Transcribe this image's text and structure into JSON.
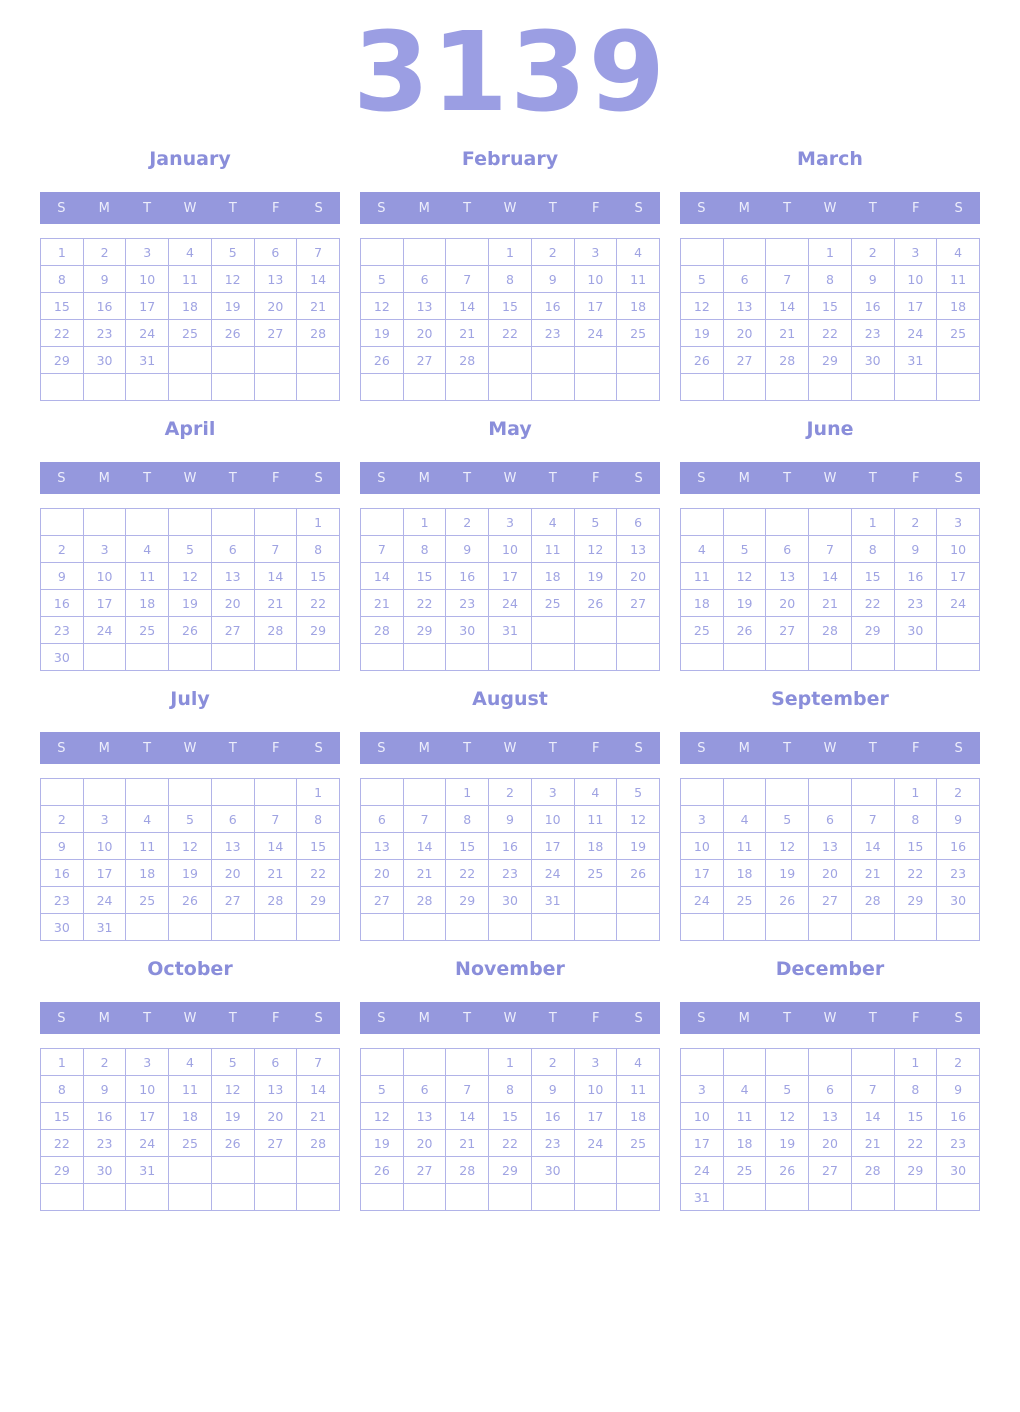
{
  "year": "3139",
  "weekdays": [
    "S",
    "M",
    "T",
    "W",
    "T",
    "F",
    "S"
  ],
  "colors": {
    "year_color": "#9b9ee3",
    "title_color": "#8a8eda",
    "weekday_bg": "#9598dd",
    "weekday_text": "#edeefb",
    "date_text": "#9fa3e2",
    "cell_border": "#b1b3e8",
    "page_bg": "#ffffff"
  },
  "months": [
    {
      "name": "January",
      "weeks": [
        [
          "1",
          "2",
          "3",
          "4",
          "5",
          "6",
          "7"
        ],
        [
          "8",
          "9",
          "10",
          "11",
          "12",
          "13",
          "14"
        ],
        [
          "15",
          "16",
          "17",
          "18",
          "19",
          "20",
          "21"
        ],
        [
          "22",
          "23",
          "24",
          "25",
          "26",
          "27",
          "28"
        ],
        [
          "29",
          "30",
          "31",
          "",
          "",
          "",
          ""
        ],
        [
          "",
          "",
          "",
          "",
          "",
          "",
          ""
        ]
      ]
    },
    {
      "name": "February",
      "weeks": [
        [
          "",
          "",
          "",
          "1",
          "2",
          "3",
          "4"
        ],
        [
          "5",
          "6",
          "7",
          "8",
          "9",
          "10",
          "11"
        ],
        [
          "12",
          "13",
          "14",
          "15",
          "16",
          "17",
          "18"
        ],
        [
          "19",
          "20",
          "21",
          "22",
          "23",
          "24",
          "25"
        ],
        [
          "26",
          "27",
          "28",
          "",
          "",
          "",
          ""
        ],
        [
          "",
          "",
          "",
          "",
          "",
          "",
          ""
        ]
      ]
    },
    {
      "name": "March",
      "weeks": [
        [
          "",
          "",
          "",
          "1",
          "2",
          "3",
          "4"
        ],
        [
          "5",
          "6",
          "7",
          "8",
          "9",
          "10",
          "11"
        ],
        [
          "12",
          "13",
          "14",
          "15",
          "16",
          "17",
          "18"
        ],
        [
          "19",
          "20",
          "21",
          "22",
          "23",
          "24",
          "25"
        ],
        [
          "26",
          "27",
          "28",
          "29",
          "30",
          "31",
          ""
        ],
        [
          "",
          "",
          "",
          "",
          "",
          "",
          ""
        ]
      ]
    },
    {
      "name": "April",
      "weeks": [
        [
          "",
          "",
          "",
          "",
          "",
          "",
          "1"
        ],
        [
          "2",
          "3",
          "4",
          "5",
          "6",
          "7",
          "8"
        ],
        [
          "9",
          "10",
          "11",
          "12",
          "13",
          "14",
          "15"
        ],
        [
          "16",
          "17",
          "18",
          "19",
          "20",
          "21",
          "22"
        ],
        [
          "23",
          "24",
          "25",
          "26",
          "27",
          "28",
          "29"
        ],
        [
          "30",
          "",
          "",
          "",
          "",
          "",
          ""
        ]
      ]
    },
    {
      "name": "May",
      "weeks": [
        [
          "",
          "1",
          "2",
          "3",
          "4",
          "5",
          "6"
        ],
        [
          "7",
          "8",
          "9",
          "10",
          "11",
          "12",
          "13"
        ],
        [
          "14",
          "15",
          "16",
          "17",
          "18",
          "19",
          "20"
        ],
        [
          "21",
          "22",
          "23",
          "24",
          "25",
          "26",
          "27"
        ],
        [
          "28",
          "29",
          "30",
          "31",
          "",
          "",
          ""
        ],
        [
          "",
          "",
          "",
          "",
          "",
          "",
          ""
        ]
      ]
    },
    {
      "name": "June",
      "weeks": [
        [
          "",
          "",
          "",
          "",
          "1",
          "2",
          "3"
        ],
        [
          "4",
          "5",
          "6",
          "7",
          "8",
          "9",
          "10"
        ],
        [
          "11",
          "12",
          "13",
          "14",
          "15",
          "16",
          "17"
        ],
        [
          "18",
          "19",
          "20",
          "21",
          "22",
          "23",
          "24"
        ],
        [
          "25",
          "26",
          "27",
          "28",
          "29",
          "30",
          ""
        ],
        [
          "",
          "",
          "",
          "",
          "",
          "",
          ""
        ]
      ]
    },
    {
      "name": "July",
      "weeks": [
        [
          "",
          "",
          "",
          "",
          "",
          "",
          "1"
        ],
        [
          "2",
          "3",
          "4",
          "5",
          "6",
          "7",
          "8"
        ],
        [
          "9",
          "10",
          "11",
          "12",
          "13",
          "14",
          "15"
        ],
        [
          "16",
          "17",
          "18",
          "19",
          "20",
          "21",
          "22"
        ],
        [
          "23",
          "24",
          "25",
          "26",
          "27",
          "28",
          "29"
        ],
        [
          "30",
          "31",
          "",
          "",
          "",
          "",
          ""
        ]
      ]
    },
    {
      "name": "August",
      "weeks": [
        [
          "",
          "",
          "1",
          "2",
          "3",
          "4",
          "5"
        ],
        [
          "6",
          "7",
          "8",
          "9",
          "10",
          "11",
          "12"
        ],
        [
          "13",
          "14",
          "15",
          "16",
          "17",
          "18",
          "19"
        ],
        [
          "20",
          "21",
          "22",
          "23",
          "24",
          "25",
          "26"
        ],
        [
          "27",
          "28",
          "29",
          "30",
          "31",
          "",
          ""
        ],
        [
          "",
          "",
          "",
          "",
          "",
          "",
          ""
        ]
      ]
    },
    {
      "name": "September",
      "weeks": [
        [
          "",
          "",
          "",
          "",
          "",
          "1",
          "2"
        ],
        [
          "3",
          "4",
          "5",
          "6",
          "7",
          "8",
          "9"
        ],
        [
          "10",
          "11",
          "12",
          "13",
          "14",
          "15",
          "16"
        ],
        [
          "17",
          "18",
          "19",
          "20",
          "21",
          "22",
          "23"
        ],
        [
          "24",
          "25",
          "26",
          "27",
          "28",
          "29",
          "30"
        ],
        [
          "",
          "",
          "",
          "",
          "",
          "",
          ""
        ]
      ]
    },
    {
      "name": "October",
      "weeks": [
        [
          "1",
          "2",
          "3",
          "4",
          "5",
          "6",
          "7"
        ],
        [
          "8",
          "9",
          "10",
          "11",
          "12",
          "13",
          "14"
        ],
        [
          "15",
          "16",
          "17",
          "18",
          "19",
          "20",
          "21"
        ],
        [
          "22",
          "23",
          "24",
          "25",
          "26",
          "27",
          "28"
        ],
        [
          "29",
          "30",
          "31",
          "",
          "",
          "",
          ""
        ],
        [
          "",
          "",
          "",
          "",
          "",
          "",
          ""
        ]
      ]
    },
    {
      "name": "November",
      "weeks": [
        [
          "",
          "",
          "",
          "1",
          "2",
          "3",
          "4"
        ],
        [
          "5",
          "6",
          "7",
          "8",
          "9",
          "10",
          "11"
        ],
        [
          "12",
          "13",
          "14",
          "15",
          "16",
          "17",
          "18"
        ],
        [
          "19",
          "20",
          "21",
          "22",
          "23",
          "24",
          "25"
        ],
        [
          "26",
          "27",
          "28",
          "29",
          "30",
          "",
          ""
        ],
        [
          "",
          "",
          "",
          "",
          "",
          "",
          ""
        ]
      ]
    },
    {
      "name": "December",
      "weeks": [
        [
          "",
          "",
          "",
          "",
          "",
          "1",
          "2"
        ],
        [
          "3",
          "4",
          "5",
          "6",
          "7",
          "8",
          "9"
        ],
        [
          "10",
          "11",
          "12",
          "13",
          "14",
          "15",
          "16"
        ],
        [
          "17",
          "18",
          "19",
          "20",
          "21",
          "22",
          "23"
        ],
        [
          "24",
          "25",
          "26",
          "27",
          "28",
          "29",
          "30"
        ],
        [
          "31",
          "",
          "",
          "",
          "",
          "",
          ""
        ]
      ]
    }
  ]
}
